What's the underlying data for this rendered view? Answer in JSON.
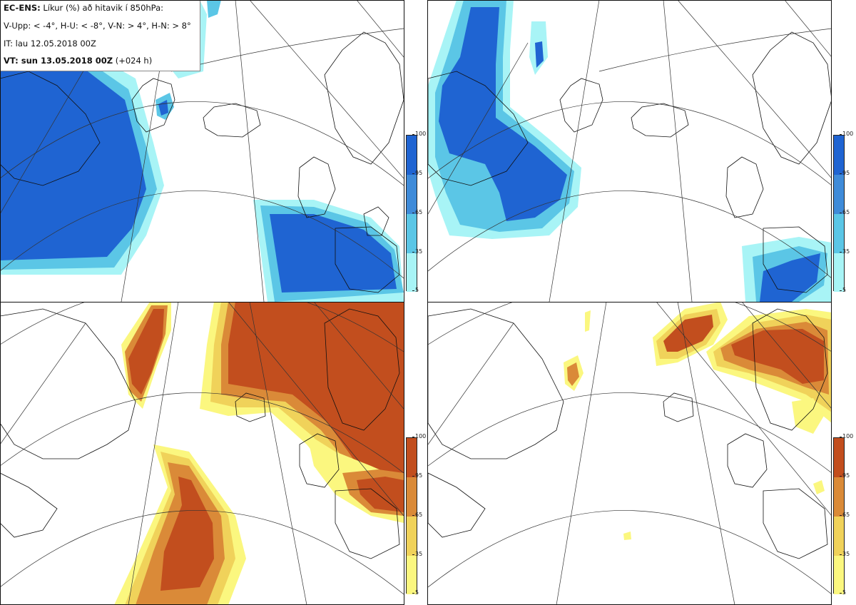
{
  "info": {
    "line1_bold": "EC-ENS:",
    "line1_text": " Líkur (%) að hitavik í 850hPa:",
    "line2": "V-Upp: < -4°, H-U: < -8°, V-N: > 4°, H-N: > 8°",
    "line3": "IT: lau 12.05.2018 00Z",
    "line4_bold": "VT: sun 13.05.2018 00Z",
    "line4_text": " (+024 h)"
  },
  "panels": {
    "top_left": "V-Upp",
    "top_right": "H-U",
    "bottom_left": "V-N",
    "bottom_right": "H-N"
  },
  "colorbar": {
    "ticks": [
      "100",
      "95",
      "65",
      "35",
      "5"
    ],
    "cold_colors": [
      "#1f64d2",
      "#3f8bd9",
      "#5bc6e6",
      "#a8f4f6"
    ],
    "warm_colors": [
      "#c24e1e",
      "#da8a38",
      "#f0d25a",
      "#fbf77f"
    ]
  }
}
